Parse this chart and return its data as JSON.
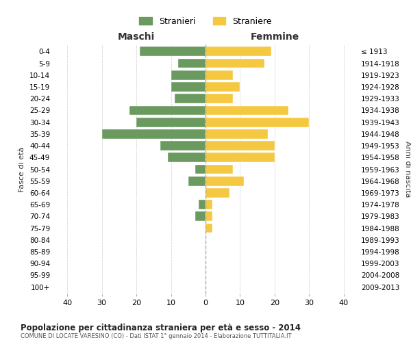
{
  "age_groups": [
    "0-4",
    "5-9",
    "10-14",
    "15-19",
    "20-24",
    "25-29",
    "30-34",
    "35-39",
    "40-44",
    "45-49",
    "50-54",
    "55-59",
    "60-64",
    "65-69",
    "70-74",
    "75-79",
    "80-84",
    "85-89",
    "90-94",
    "95-99",
    "100+"
  ],
  "birth_years": [
    "2009-2013",
    "2004-2008",
    "1999-2003",
    "1994-1998",
    "1989-1993",
    "1984-1988",
    "1979-1983",
    "1974-1978",
    "1969-1973",
    "1964-1968",
    "1959-1963",
    "1954-1958",
    "1949-1953",
    "1944-1948",
    "1939-1943",
    "1934-1938",
    "1929-1933",
    "1924-1928",
    "1919-1923",
    "1914-1918",
    "≤ 1913"
  ],
  "males": [
    19,
    8,
    10,
    10,
    9,
    22,
    20,
    30,
    13,
    11,
    3,
    5,
    0,
    2,
    3,
    0,
    0,
    0,
    0,
    0,
    0
  ],
  "females": [
    19,
    17,
    8,
    10,
    8,
    24,
    30,
    18,
    20,
    20,
    8,
    11,
    7,
    2,
    2,
    2,
    0,
    0,
    0,
    0,
    0
  ],
  "male_color": "#6a9a5f",
  "female_color": "#f5c842",
  "male_label": "Stranieri",
  "female_label": "Straniere",
  "title": "Popolazione per cittadinanza straniera per età e sesso - 2014",
  "subtitle": "COMUNE DI LOCATE VARESINO (CO) - Dati ISTAT 1° gennaio 2014 - Elaborazione TUTTITALIA.IT",
  "xlabel_left": "Maschi",
  "xlabel_right": "Femmine",
  "ylabel_left": "Fasce di età",
  "ylabel_right": "Anni di nascita",
  "xlim": 44,
  "background_color": "#ffffff",
  "grid_color": "#cccccc"
}
